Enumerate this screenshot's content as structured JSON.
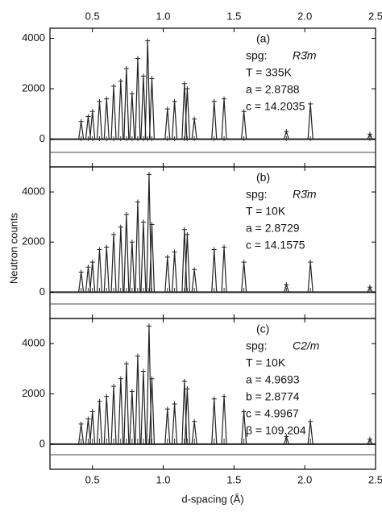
{
  "chart_data": [
    {
      "type": "stem",
      "xlim": [
        0.2,
        2.5
      ],
      "ylim": [
        -1100,
        4400
      ],
      "yticks": [
        0,
        2000,
        4000
      ],
      "xticks": [
        0.5,
        {
          "value": 1,
          "label": "1.0"
        },
        1.5,
        {
          "value": 2,
          "label": "2.0"
        },
        2.5
      ],
      "xlabel": "d-spacing (Å)",
      "ylabel": "Neutron counts",
      "color": "#222",
      "annotation": {
        "label": "(a)",
        "spg": "spg:",
        "group": "R3̄m",
        "lines": [
          "T = 335K",
          "a = 2.8788",
          "c = 14.2035"
        ]
      },
      "x": [
        0.42,
        0.47,
        0.5,
        0.55,
        0.6,
        0.65,
        0.7,
        0.74,
        0.78,
        0.82,
        0.86,
        0.89,
        0.92,
        1.03,
        1.08,
        1.15,
        1.17,
        1.22,
        1.36,
        1.43,
        1.57,
        1.87,
        2.04,
        2.46
      ],
      "values": [
        700,
        900,
        1100,
        1500,
        1600,
        2100,
        2300,
        2800,
        1800,
        3200,
        2500,
        3900,
        2400,
        1200,
        1500,
        2200,
        2000,
        800,
        1500,
        1600,
        1100,
        300,
        1400,
        200
      ]
    },
    {
      "type": "stem",
      "xlim": [
        0.2,
        2.5
      ],
      "ylim": [
        -1050,
        5000
      ],
      "yticks": [
        0,
        2000,
        4000
      ],
      "color": "#222",
      "annotation": {
        "label": "(b)",
        "spg": "spg:",
        "group": "R3̄m",
        "lines": [
          "T = 10K",
          "a = 2.8729",
          "c = 14.1575"
        ]
      },
      "x": [
        0.42,
        0.47,
        0.5,
        0.55,
        0.6,
        0.65,
        0.7,
        0.74,
        0.78,
        0.82,
        0.86,
        0.9,
        0.92,
        1.03,
        1.08,
        1.15,
        1.17,
        1.22,
        1.36,
        1.43,
        1.57,
        1.87,
        2.04,
        2.46
      ],
      "values": [
        800,
        1000,
        1200,
        1700,
        1800,
        2300,
        2600,
        3100,
        2000,
        3600,
        2800,
        4700,
        2700,
        1400,
        1600,
        2500,
        2300,
        900,
        1700,
        1800,
        1200,
        300,
        1200,
        200
      ]
    },
    {
      "type": "stem",
      "xlim": [
        0.2,
        2.5
      ],
      "ylim": [
        -1000,
        5000
      ],
      "yticks": [
        0,
        2000,
        4000
      ],
      "color": "#222",
      "annotation": {
        "label": "(c)",
        "spg": "spg:",
        "group": "C2/m",
        "lines": [
          "T = 10K",
          "a = 4.9693",
          "b = 2.8774",
          "c = 4.9967",
          "β = 109.204"
        ]
      },
      "x": [
        0.42,
        0.47,
        0.5,
        0.55,
        0.6,
        0.65,
        0.7,
        0.74,
        0.78,
        0.82,
        0.86,
        0.9,
        0.92,
        1.03,
        1.08,
        1.15,
        1.17,
        1.22,
        1.36,
        1.43,
        1.57,
        1.87,
        2.04,
        2.46
      ],
      "values": [
        800,
        1000,
        1300,
        1700,
        1900,
        2300,
        2600,
        3200,
        2100,
        3500,
        2900,
        4700,
        2600,
        1400,
        1600,
        2500,
        2200,
        900,
        1800,
        1900,
        1300,
        300,
        900,
        200
      ]
    }
  ]
}
